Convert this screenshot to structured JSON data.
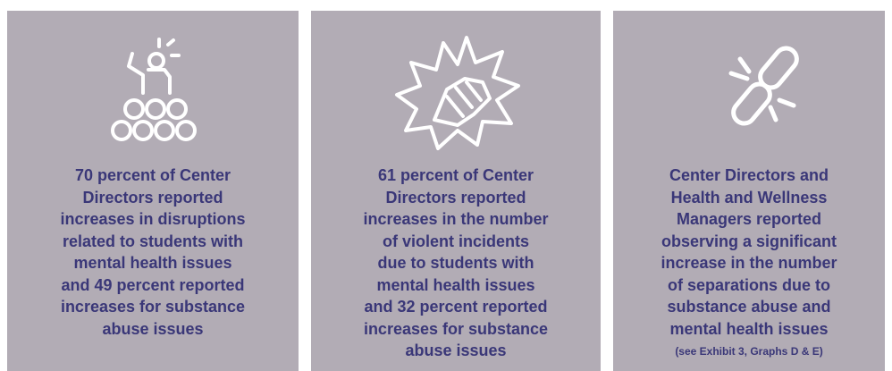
{
  "panels": [
    {
      "lines": [
        "70 percent of Center",
        "Directors reported",
        "increases in disruptions",
        "related to students with",
        "mental health issues",
        "and 49 percent reported",
        "increases for substance",
        "abuse issues"
      ]
    },
    {
      "lines": [
        "61 percent of Center",
        "Directors reported",
        "increases in the number",
        "of violent incidents",
        "due to students with",
        "mental health issues",
        "and 32 percent reported",
        "increases for substance",
        "abuse issues"
      ]
    },
    {
      "lines": [
        "Center Directors and",
        "Health and Wellness",
        "Managers reported",
        "observing a significant",
        "increase in the number",
        "of separations due to",
        "substance abuse and",
        "mental health issues"
      ],
      "note": "(see Exhibit 3, Graphs D & E)"
    }
  ]
}
